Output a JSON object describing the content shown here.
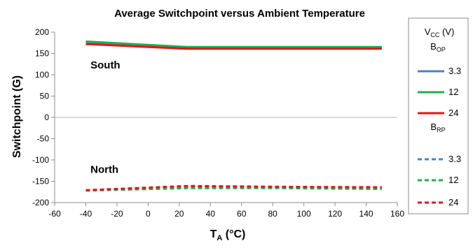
{
  "chart_data": {
    "type": "line",
    "title": "Average Switchpoint versus Ambient Temperature",
    "xlabel": {
      "main": "T",
      "sub": "A",
      "unit": " (°C)"
    },
    "ylabel": "Switchpoint (G)",
    "xlim": [
      -60,
      160
    ],
    "ylim": [
      -200,
      200
    ],
    "x_ticks": [
      -60,
      -40,
      -20,
      0,
      20,
      40,
      60,
      80,
      100,
      120,
      140,
      160
    ],
    "y_ticks": [
      200,
      150,
      100,
      50,
      0,
      -50,
      -100,
      -150,
      -200
    ],
    "x_tick_labels": [
      "-60",
      "-40",
      "-20",
      "0",
      "20",
      "40",
      "60",
      "80",
      "100",
      "120",
      "140",
      "160"
    ],
    "y_tick_labels": [
      "200",
      "150",
      "100",
      "50",
      "0",
      "-50",
      "-100",
      "-150",
      "-200"
    ],
    "grid": false,
    "annotations": [
      {
        "text": "South",
        "x": -37,
        "y": 123
      },
      {
        "text": "North",
        "x": -37,
        "y": -122
      }
    ],
    "legend": {
      "placement": "right",
      "title": {
        "main": "V",
        "sub": "CC",
        "unit": " (V)"
      },
      "groups": [
        {
          "label_main": "B",
          "label_sub": "OP",
          "dashed": false,
          "entries": [
            "3.3",
            "12",
            "24"
          ]
        },
        {
          "label_main": "B",
          "label_sub": "RP",
          "dashed": true,
          "entries": [
            "3.3",
            "12",
            "24"
          ]
        }
      ]
    },
    "x": [
      -40,
      25,
      85,
      150
    ],
    "series": [
      {
        "name": "3.3",
        "group": "BOP",
        "color": "#4F81BD",
        "dashed": false,
        "values": [
          176,
          164,
          164,
          164
        ]
      },
      {
        "name": "12",
        "group": "BOP",
        "color": "#1FAE4E",
        "dashed": false,
        "values": [
          178,
          165,
          165,
          165
        ]
      },
      {
        "name": "24",
        "group": "BOP",
        "color": "#E8121A",
        "dashed": false,
        "values": [
          172,
          161,
          161,
          161
        ]
      },
      {
        "name": "3.3",
        "group": "BRP",
        "color": "#4F81BD",
        "dashed": true,
        "values": [
          -171,
          -164,
          -165,
          -167
        ]
      },
      {
        "name": "12",
        "group": "BRP",
        "color": "#1FAE4E",
        "dashed": true,
        "values": [
          -172,
          -166,
          -166,
          -168
        ]
      },
      {
        "name": "24",
        "group": "BRP",
        "color": "#E8121A",
        "dashed": true,
        "values": [
          -171,
          -161,
          -163,
          -164
        ]
      }
    ]
  }
}
